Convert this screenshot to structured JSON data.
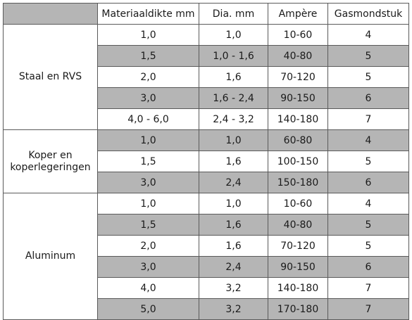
{
  "headers": [
    "",
    "Materiaaldikte mm",
    "Dia. mm",
    "Ampère",
    "Gasmondstuk"
  ],
  "groups": [
    {
      "name_lines": [
        "Staal en RVS"
      ],
      "rows": [
        [
          "1,0",
          "1,0",
          "10-60",
          "4"
        ],
        [
          "1,5",
          "1,0 - 1,6",
          "40-80",
          "5"
        ],
        [
          "2,0",
          "1,6",
          "70-120",
          "5"
        ],
        [
          "3,0",
          "1,6 - 2,4",
          "90-150",
          "6"
        ],
        [
          "4,0 - 6,0",
          "2,4 - 3,2",
          "140-180",
          "7"
        ]
      ]
    },
    {
      "name_lines": [
        "Koper en",
        "koperlegeringen"
      ],
      "rows": [
        [
          "1,0",
          "1,0",
          "60-80",
          "4"
        ],
        [
          "1,5",
          "1,6",
          "100-150",
          "5"
        ],
        [
          "3,0",
          "2,4",
          "150-180",
          "6"
        ]
      ]
    },
    {
      "name_lines": [
        "Aluminum"
      ],
      "rows": [
        [
          "1,0",
          "1,0",
          "10-60",
          "4"
        ],
        [
          "1,5",
          "1,6",
          "40-80",
          "5"
        ],
        [
          "2,0",
          "1,6",
          "70-120",
          "5"
        ],
        [
          "3,0",
          "2,4",
          "90-150",
          "6"
        ],
        [
          "4,0",
          "3,2",
          "140-180",
          "7"
        ],
        [
          "5,0",
          "3,2",
          "170-180",
          "7"
        ]
      ]
    }
  ],
  "colors": {
    "border": "#5a5a5a",
    "shade": "#b5b5b5",
    "text": "#1a1a1a"
  }
}
